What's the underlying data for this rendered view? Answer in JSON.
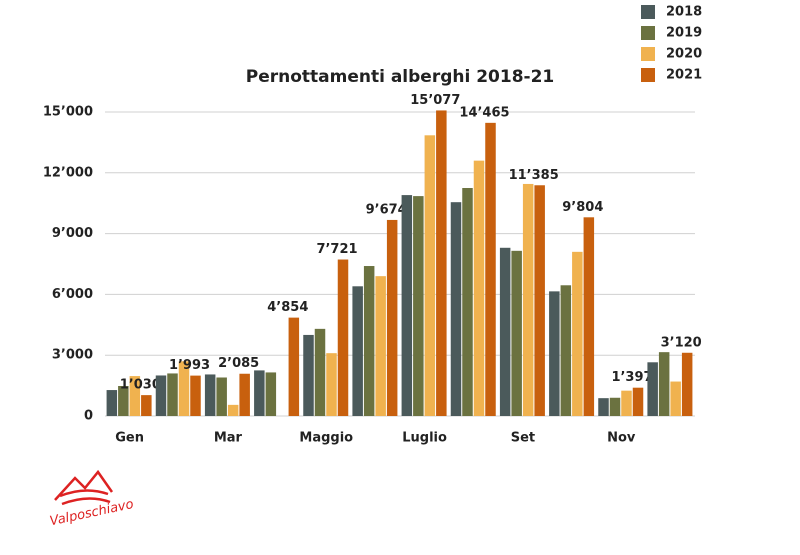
{
  "chart_data": {
    "type": "bar",
    "title": "Pernottamenti alberghi 2018-21",
    "categories": [
      "Gen",
      null,
      "Mar",
      null,
      "Maggio",
      null,
      "Luglio",
      null,
      "Set",
      null,
      "Nov",
      null
    ],
    "series": [
      {
        "name": "2018",
        "color": "#4b5a5b",
        "values": [
          1280,
          2000,
          2050,
          2250,
          4000,
          6400,
          10900,
          10550,
          8300,
          6150,
          880,
          2650
        ]
      },
      {
        "name": "2019",
        "color": "#6b7240",
        "values": [
          1480,
          2100,
          1900,
          2150,
          4300,
          7400,
          10850,
          11250,
          8150,
          6450,
          900,
          3150
        ]
      },
      {
        "name": "2020",
        "color": "#f0b24f",
        "values": [
          1970,
          2700,
          550,
          0,
          3100,
          6900,
          13850,
          12600,
          11450,
          8100,
          1250,
          1700
        ]
      },
      {
        "name": "2021",
        "color": "#c8600e",
        "values": [
          1030,
          1993,
          2085,
          4854,
          7721,
          9674,
          15077,
          14465,
          11385,
          9804,
          1397,
          3120
        ],
        "value_labels": [
          "1’030",
          "1’993",
          "2’085",
          "4’854",
          "7’721",
          "9’674",
          "15’077",
          "14’465",
          "11’385",
          "9’804",
          "1’397",
          "3’120"
        ]
      }
    ],
    "ylim": [
      0,
      15000
    ],
    "yticks": [
      0,
      {
        "value": 3000,
        "label": "3’000"
      },
      {
        "value": 6000,
        "label": "6’000"
      },
      {
        "value": 9000,
        "label": "9’000"
      },
      {
        "value": 12000,
        "label": "12’000"
      },
      {
        "value": 15000,
        "label": "15’000"
      }
    ],
    "grid": true,
    "legend": "top-right"
  },
  "logo": "Valposchiavo"
}
